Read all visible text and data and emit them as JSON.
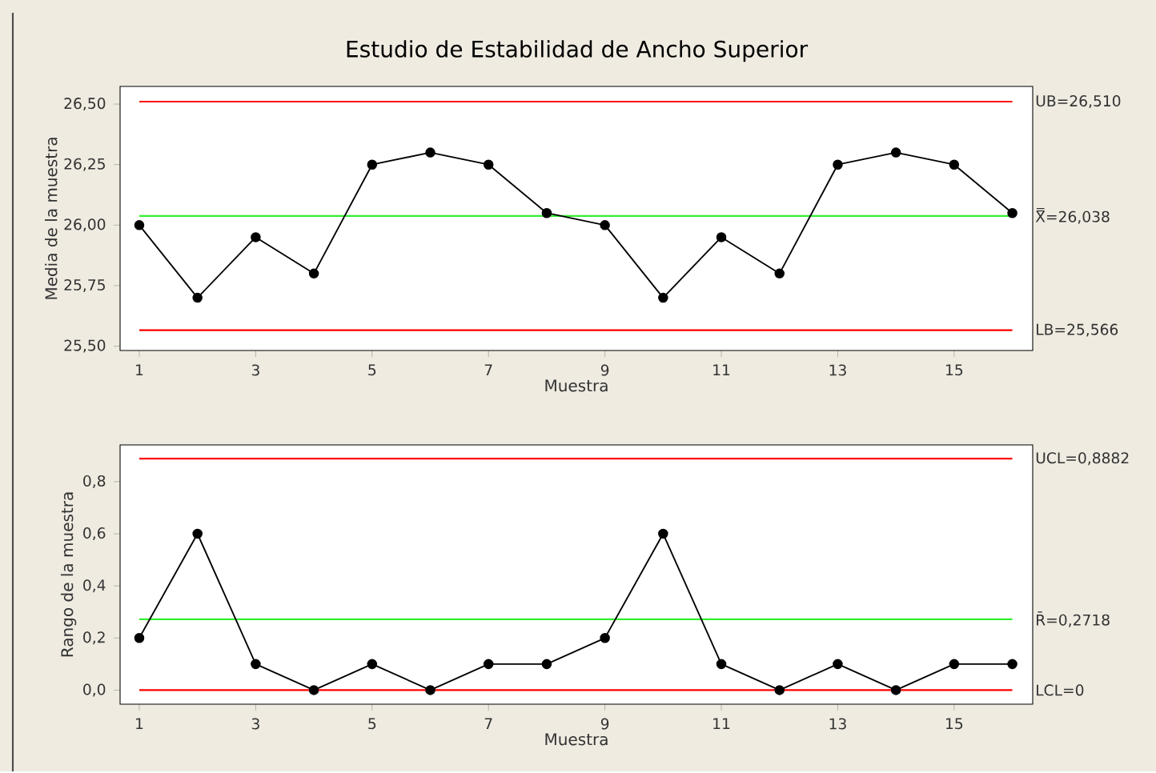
{
  "chart_data": [
    {
      "type": "line",
      "title": "Estudio de Estabilidad de Ancho Superior",
      "xlabel": "Muestra",
      "ylabel": "Media de la muestra",
      "x": [
        1,
        2,
        3,
        4,
        5,
        6,
        7,
        8,
        9,
        10,
        11,
        12,
        13,
        14,
        15,
        16
      ],
      "values": [
        26.0,
        25.7,
        25.95,
        25.8,
        26.25,
        26.3,
        26.25,
        26.05,
        26.0,
        25.7,
        25.95,
        25.8,
        26.25,
        26.3,
        26.25,
        26.05
      ],
      "color": "#000000",
      "marker": "circle",
      "line_style": "solid",
      "xlim": [
        0.67,
        16.35
      ],
      "ylim": [
        25.482,
        26.573
      ],
      "xticks": [
        1,
        3,
        5,
        7,
        9,
        11,
        13,
        15
      ],
      "yticks": [
        {
          "value": 25.5,
          "label": "25,50"
        },
        {
          "value": 25.75,
          "label": "25,75"
        },
        {
          "value": 26.0,
          "label": "26,00"
        },
        {
          "value": 26.25,
          "label": "26,25"
        },
        {
          "value": 26.5,
          "label": "26,50"
        }
      ],
      "ref_lines": [
        {
          "axis": "y",
          "value": 26.51,
          "label": "UB=26,510",
          "color": "#ff0000"
        },
        {
          "axis": "y",
          "value": 26.038,
          "label": "X̿=26,038",
          "color": "#33ee33"
        },
        {
          "axis": "y",
          "value": 25.566,
          "label": "LB=25,566",
          "color": "#ff0000"
        }
      ]
    },
    {
      "type": "line",
      "xlabel": "Muestra",
      "ylabel": "Rango de la muestra",
      "x": [
        1,
        2,
        3,
        4,
        5,
        6,
        7,
        8,
        9,
        10,
        11,
        12,
        13,
        14,
        15,
        16
      ],
      "values": [
        0.2,
        0.6,
        0.1,
        0.0,
        0.1,
        0.0,
        0.1,
        0.1,
        0.2,
        0.6,
        0.1,
        0.0,
        0.1,
        0.0,
        0.1,
        0.1
      ],
      "color": "#000000",
      "marker": "circle",
      "line_style": "solid",
      "xlim": [
        0.67,
        16.35
      ],
      "ylim": [
        -0.054,
        0.941
      ],
      "xticks": [
        1,
        3,
        5,
        7,
        9,
        11,
        13,
        15
      ],
      "yticks": [
        {
          "value": 0.0,
          "label": "0,0"
        },
        {
          "value": 0.2,
          "label": "0,2"
        },
        {
          "value": 0.4,
          "label": "0,4"
        },
        {
          "value": 0.6,
          "label": "0,6"
        },
        {
          "value": 0.8,
          "label": "0,8"
        }
      ],
      "ref_lines": [
        {
          "axis": "y",
          "value": 0.8882,
          "label": "UCL=0,8882",
          "color": "#ff0000"
        },
        {
          "axis": "y",
          "value": 0.2718,
          "label": "R̄=0,2718",
          "color": "#33ee33"
        },
        {
          "axis": "y",
          "value": 0.0,
          "label": "LCL=0",
          "color": "#ff0000"
        }
      ]
    }
  ]
}
